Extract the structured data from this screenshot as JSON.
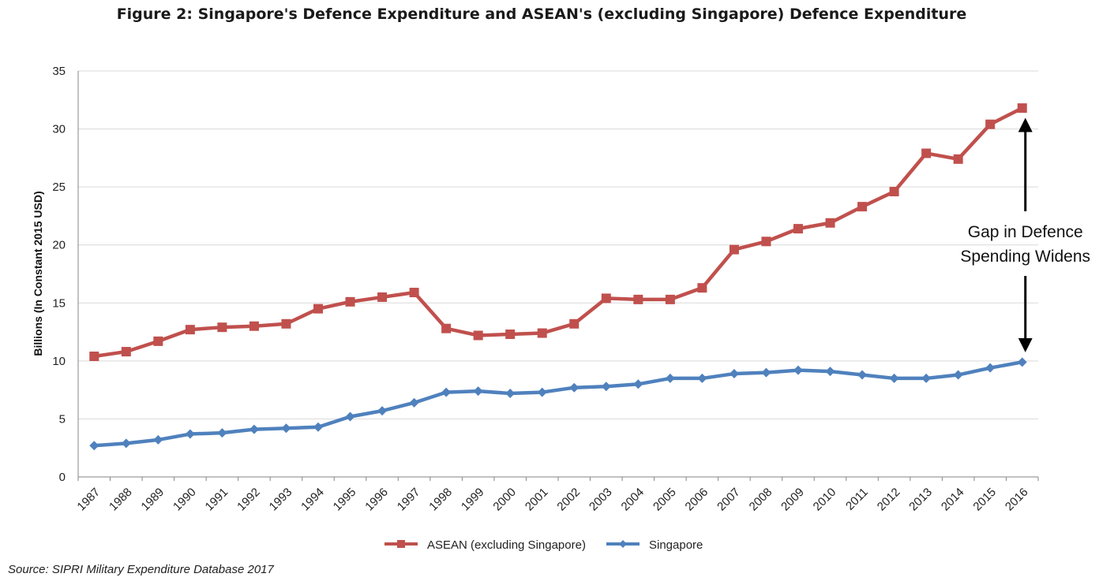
{
  "chart_data": {
    "type": "line",
    "title": "Figure 2: Singapore's Defence  Expenditure and ASEAN's (excluding Singapore) Defence Expenditure",
    "ylabel": "Billions (In Constant 2015 USD)",
    "xlabel": "",
    "ylim": [
      0,
      35
    ],
    "yticks": [
      "0",
      "5",
      "10",
      "15",
      "20",
      "25",
      "30",
      "35"
    ],
    "grid": true,
    "legend_position": "bottom",
    "x": [
      "1987",
      "1988",
      "1989",
      "1990",
      "1991",
      "1992",
      "1993",
      "1994",
      "1995",
      "1996",
      "1997",
      "1998",
      "1999",
      "2000",
      "2001",
      "2002",
      "2003",
      "2004",
      "2005",
      "2006",
      "2007",
      "2008",
      "2009",
      "2010",
      "2011",
      "2012",
      "2013",
      "2014",
      "2015",
      "2016"
    ],
    "series": [
      {
        "name": "ASEAN (excluding Singapore)",
        "color": "#c0504d",
        "marker": "square",
        "values": [
          10.4,
          10.8,
          11.7,
          12.7,
          12.9,
          13.0,
          13.2,
          14.5,
          15.1,
          15.5,
          15.9,
          12.8,
          12.2,
          12.3,
          12.4,
          13.2,
          15.4,
          15.3,
          15.3,
          16.3,
          19.6,
          20.3,
          21.4,
          21.9,
          23.3,
          24.6,
          27.9,
          27.4,
          30.4,
          31.8
        ]
      },
      {
        "name": "Singapore",
        "color": "#4f81bd",
        "marker": "diamond",
        "values": [
          2.7,
          2.9,
          3.2,
          3.7,
          3.8,
          4.1,
          4.2,
          4.3,
          5.2,
          5.7,
          6.4,
          7.3,
          7.4,
          7.2,
          7.3,
          7.7,
          7.8,
          8.0,
          8.5,
          8.5,
          8.9,
          9.0,
          9.2,
          9.1,
          8.8,
          8.5,
          8.5,
          8.8,
          9.4,
          9.9
        ]
      }
    ],
    "annotation": {
      "lines": [
        "Gap in Defence",
        "Spending Widens"
      ],
      "arrow_from": [
        2016,
        9.9
      ],
      "arrow_to": [
        2016,
        31.8
      ]
    },
    "source": "Source: SIPRI Military Expenditure Database 2017"
  }
}
